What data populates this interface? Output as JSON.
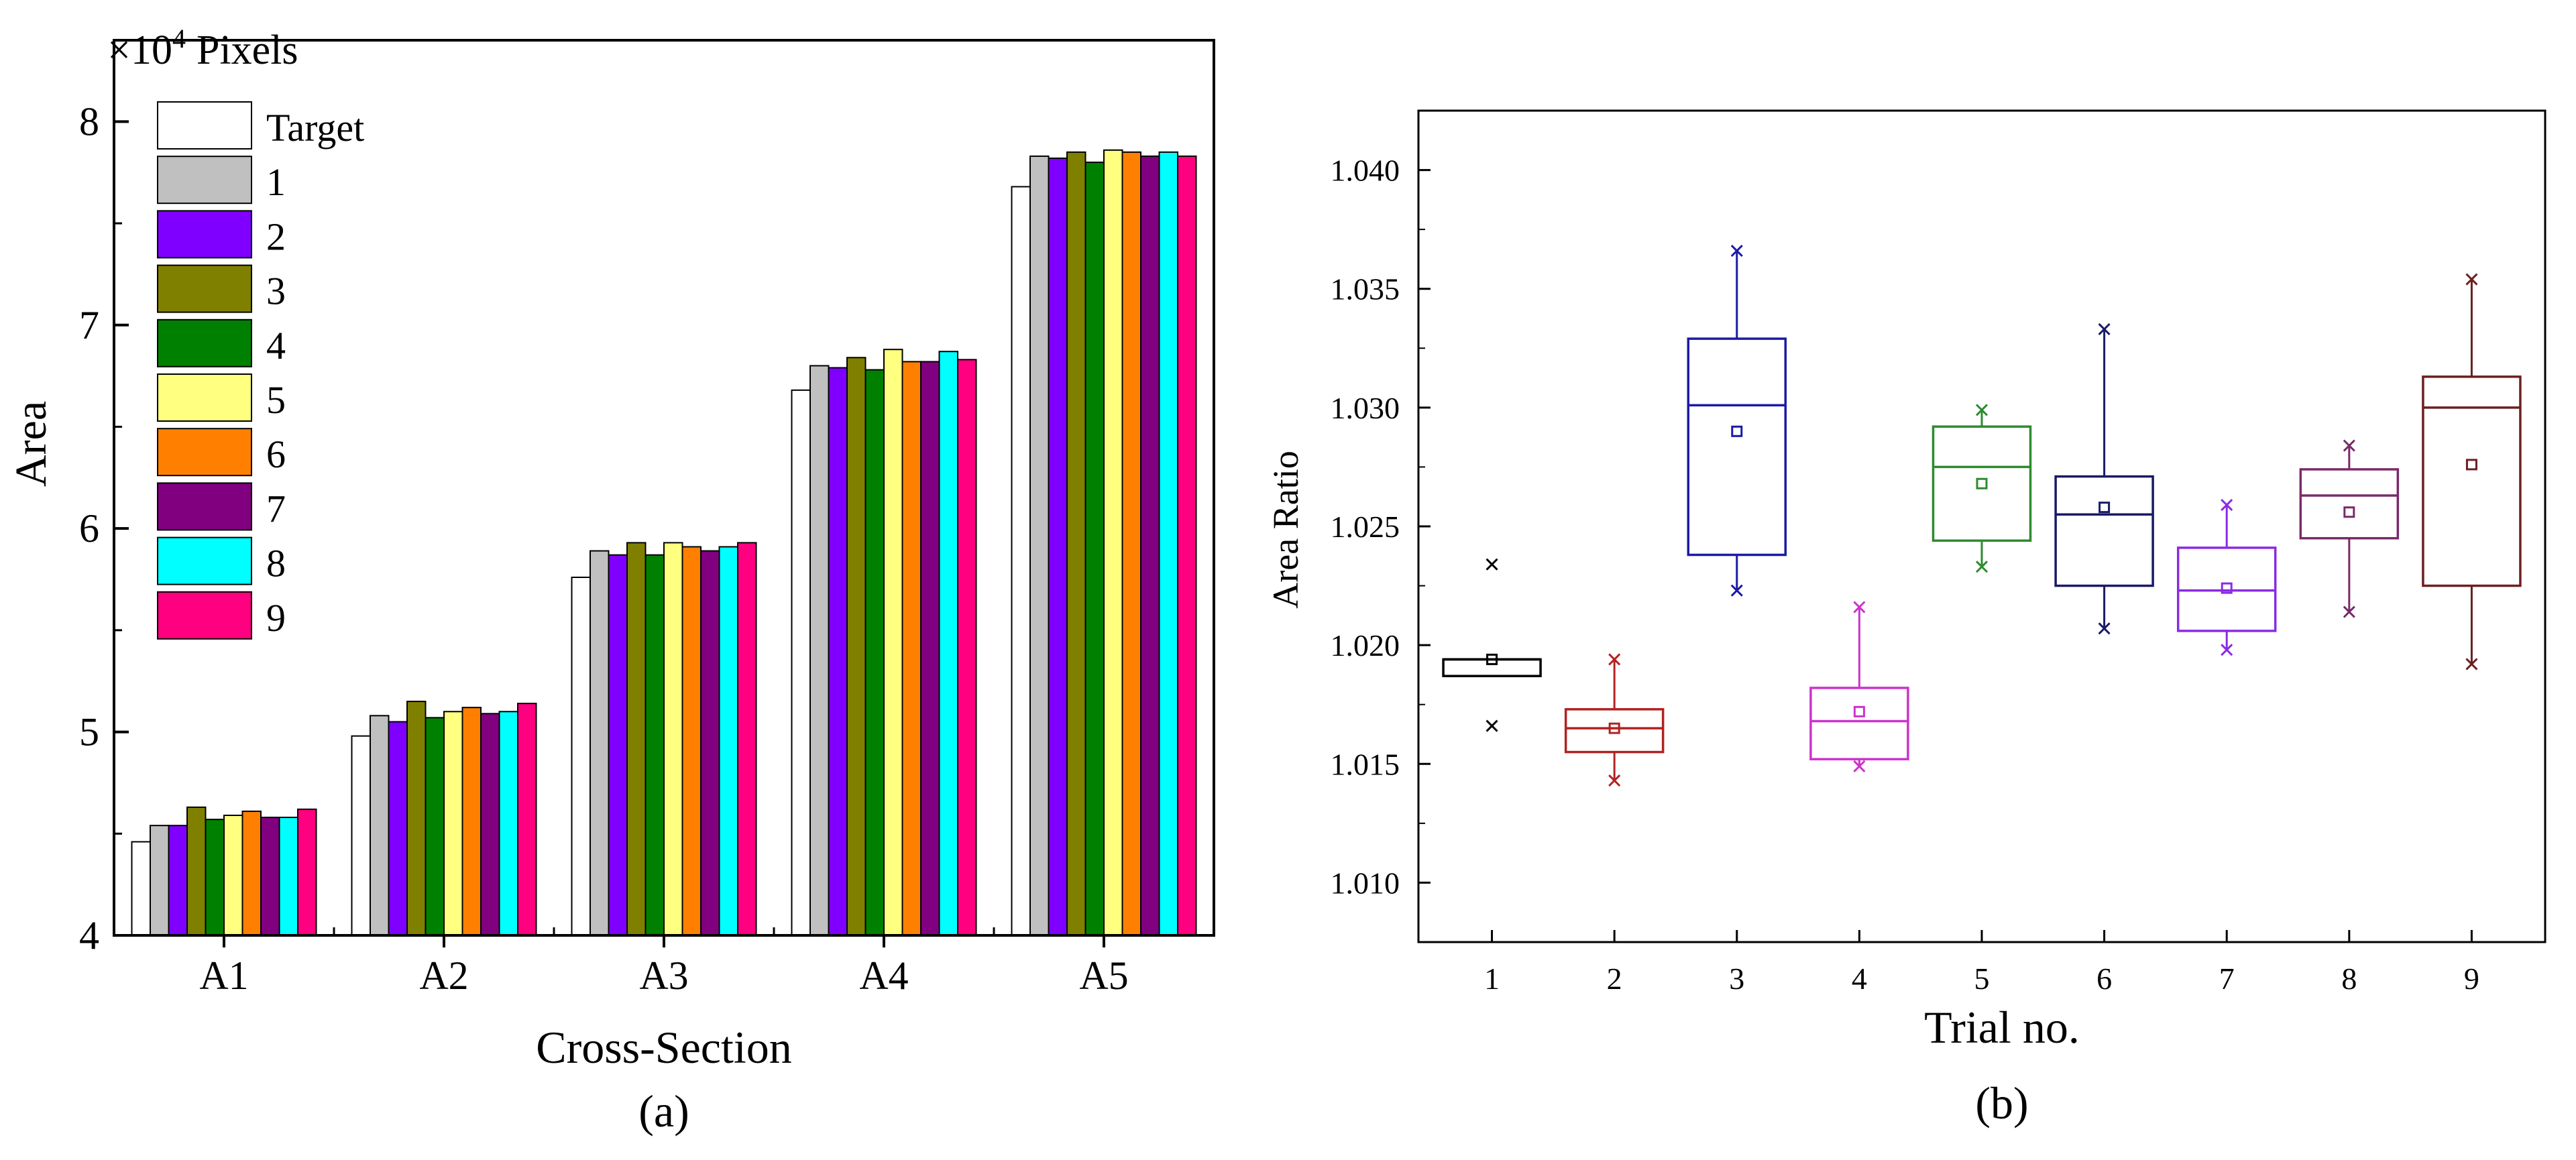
{
  "chart_data": [
    {
      "type": "bar",
      "panel_label": "(a)",
      "multiplier_label": "×10",
      "multiplier_exponent": "4",
      "multiplier_unit": "Pixels",
      "xlabel": "Cross-Section",
      "ylabel": "Area",
      "ylim": [
        4,
        8.4
      ],
      "yticks": [
        4,
        5,
        6,
        7,
        8
      ],
      "categories": [
        "A1",
        "A2",
        "A3",
        "A4",
        "A5"
      ],
      "legend_position": "top-left",
      "series": [
        {
          "name": "Target",
          "color": "#ffffff",
          "values": [
            4.46,
            4.98,
            5.76,
            6.68,
            7.68
          ]
        },
        {
          "name": "1",
          "color": "#c0c0c0",
          "values": [
            4.54,
            5.08,
            5.89,
            6.8,
            7.83
          ]
        },
        {
          "name": "2",
          "color": "#8000ff",
          "values": [
            4.54,
            5.05,
            5.87,
            6.79,
            7.82
          ]
        },
        {
          "name": "3",
          "color": "#808000",
          "values": [
            4.63,
            5.15,
            5.93,
            6.84,
            7.85
          ]
        },
        {
          "name": "4",
          "color": "#008000",
          "values": [
            4.57,
            5.07,
            5.87,
            6.78,
            7.8
          ]
        },
        {
          "name": "5",
          "color": "#ffff80",
          "values": [
            4.59,
            5.1,
            5.93,
            6.88,
            7.86
          ]
        },
        {
          "name": "6",
          "color": "#ff8000",
          "values": [
            4.61,
            5.12,
            5.91,
            6.82,
            7.85
          ]
        },
        {
          "name": "7",
          "color": "#800080",
          "values": [
            4.58,
            5.09,
            5.89,
            6.82,
            7.83
          ]
        },
        {
          "name": "8",
          "color": "#00ffff",
          "values": [
            4.58,
            5.1,
            5.91,
            6.87,
            7.85
          ]
        },
        {
          "name": "9",
          "color": "#ff0080",
          "values": [
            4.62,
            5.14,
            5.93,
            6.83,
            7.83
          ]
        }
      ]
    },
    {
      "type": "box",
      "panel_label": "(b)",
      "xlabel": "Trial no.",
      "ylabel": "Area Ratio",
      "ylim": [
        1.0075,
        1.0425
      ],
      "yticks": [
        "1.010",
        "1.015",
        "1.020",
        "1.025",
        "1.030",
        "1.035",
        "1.040"
      ],
      "xlim": [
        0.4,
        9.6
      ],
      "boxes": [
        {
          "trial": "1",
          "color": "#000000",
          "q1": 1.0187,
          "median": 1.0194,
          "q3": 1.0194,
          "mean": 1.0194,
          "min": 1.0166,
          "max": 1.0234,
          "whiskers": false
        },
        {
          "trial": "2",
          "color": "#b22222",
          "q1": 1.0155,
          "median": 1.0165,
          "q3": 1.0173,
          "mean": 1.0165,
          "min": 1.0143,
          "max": 1.0194,
          "whiskers": true
        },
        {
          "trial": "3",
          "color": "#1a1aa6",
          "q1": 1.0238,
          "median": 1.0301,
          "q3": 1.0329,
          "mean": 1.029,
          "min": 1.0223,
          "max": 1.0366,
          "whiskers": true
        },
        {
          "trial": "4",
          "color": "#cc33cc",
          "q1": 1.0152,
          "median": 1.0168,
          "q3": 1.0182,
          "mean": 1.0172,
          "min": 1.0149,
          "max": 1.0216,
          "whiskers": true
        },
        {
          "trial": "5",
          "color": "#2e8b2e",
          "q1": 1.0244,
          "median": 1.0275,
          "q3": 1.0292,
          "mean": 1.0268,
          "min": 1.0233,
          "max": 1.0299,
          "whiskers": true
        },
        {
          "trial": "6",
          "color": "#1a1a66",
          "q1": 1.0225,
          "median": 1.0255,
          "q3": 1.0271,
          "mean": 1.0258,
          "min": 1.0207,
          "max": 1.0333,
          "whiskers": true
        },
        {
          "trial": "7",
          "color": "#8a2be2",
          "q1": 1.0206,
          "median": 1.0223,
          "q3": 1.0241,
          "mean": 1.0224,
          "min": 1.0198,
          "max": 1.0259,
          "whiskers": true
        },
        {
          "trial": "8",
          "color": "#7a2a6a",
          "q1": 1.0245,
          "median": 1.0263,
          "q3": 1.0274,
          "mean": 1.0256,
          "min": 1.0214,
          "max": 1.0284,
          "whiskers": true
        },
        {
          "trial": "9",
          "color": "#6b2020",
          "q1": 1.0225,
          "median": 1.03,
          "q3": 1.0313,
          "mean": 1.0276,
          "min": 1.0192,
          "max": 1.0354,
          "whiskers": true
        }
      ]
    }
  ]
}
